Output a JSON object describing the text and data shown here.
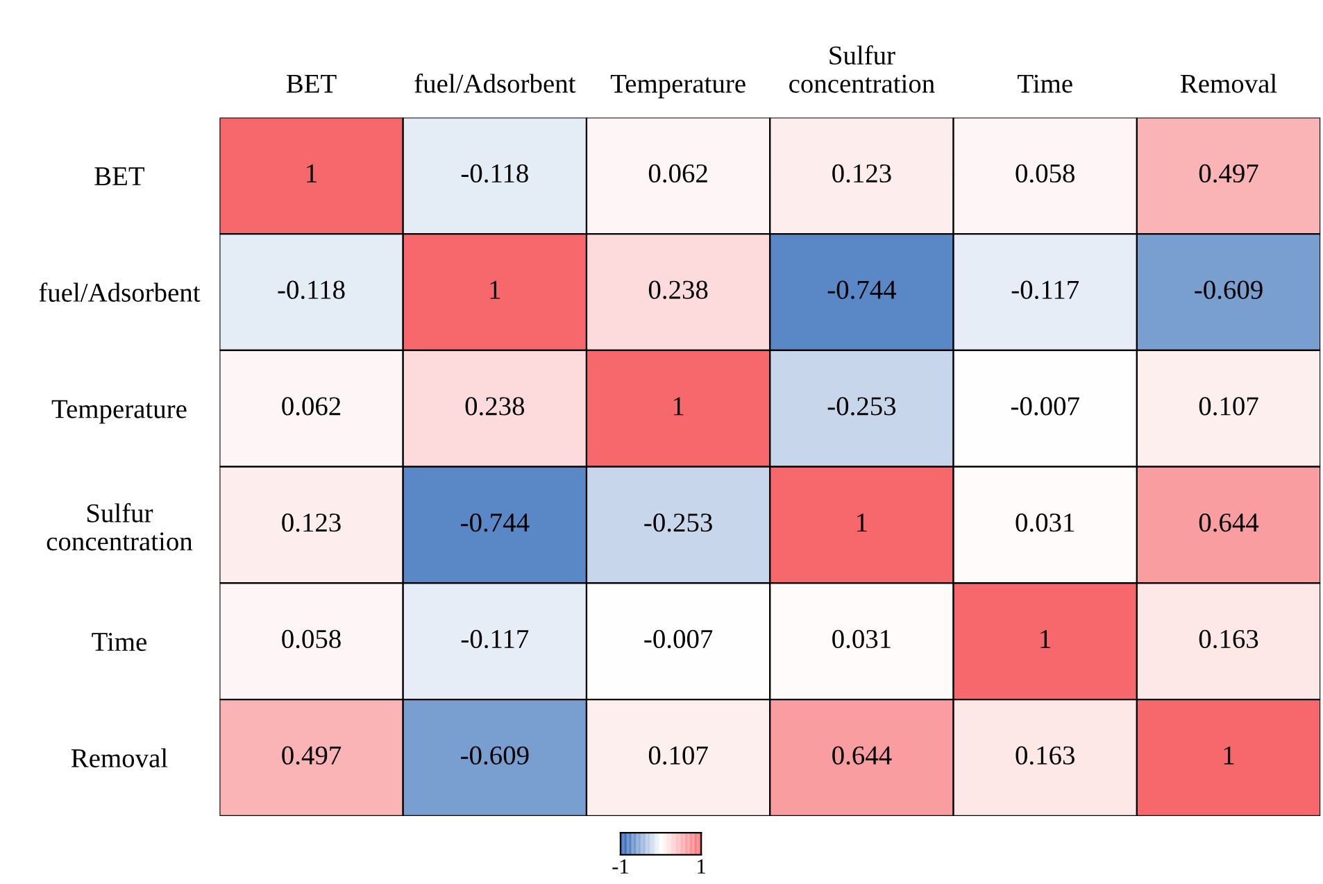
{
  "chart_data": {
    "type": "heatmap",
    "categories": [
      "BET",
      "fuel/Adsorbent",
      "Temperature",
      "Sulfur\nconcentration",
      "Time",
      "Removal"
    ],
    "y_categories": [
      "BET",
      "fuel/Adsorbent",
      "Temperature",
      "Sulfur\nconcentration",
      "Time",
      "Removal"
    ],
    "cells": [
      [
        1,
        -0.118,
        0.062,
        0.123,
        0.058,
        0.497
      ],
      [
        -0.118,
        1,
        0.238,
        -0.744,
        -0.117,
        -0.609
      ],
      [
        0.062,
        0.238,
        1,
        -0.253,
        -0.007,
        0.107
      ],
      [
        0.123,
        -0.744,
        -0.253,
        1,
        0.031,
        0.644
      ],
      [
        0.058,
        -0.117,
        -0.007,
        0.031,
        1,
        0.163
      ],
      [
        0.497,
        -0.609,
        0.107,
        0.644,
        0.163,
        1
      ]
    ],
    "clim": [
      -1,
      1
    ],
    "cticks": [
      -1,
      1
    ],
    "data_labels": true
  }
}
